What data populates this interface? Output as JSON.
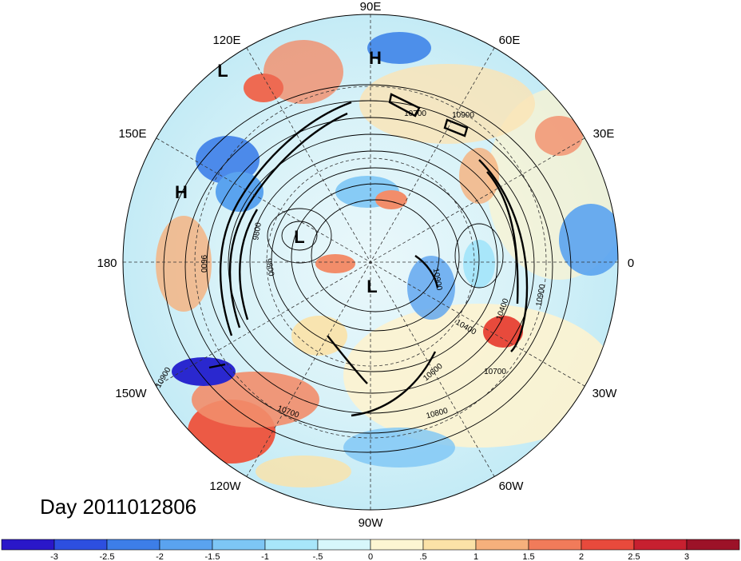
{
  "title": "Day 2011012806",
  "longitude_labels": [
    "90E",
    "60E",
    "30E",
    "0",
    "30W",
    "60W",
    "90W",
    "120W",
    "150W",
    "180",
    "150E",
    "120E"
  ],
  "pressure_centers": [
    {
      "name": "high-west-pacific",
      "label": "H"
    },
    {
      "name": "high-siberia",
      "label": "H"
    },
    {
      "name": "low-east-asia",
      "label": "L"
    },
    {
      "name": "low-canada",
      "label": "L"
    },
    {
      "name": "low-arctic",
      "label": "L"
    }
  ],
  "contour_labels": [
    "10900",
    "10700",
    "10900",
    "10400",
    "10700",
    "10800",
    "10700",
    "10400",
    "9800",
    "9800",
    "9600",
    "10900",
    "10900",
    "10600"
  ],
  "colorbar": {
    "ticks": [
      "-3",
      "-2.5",
      "-2",
      "-1.5",
      "-1",
      "-.5",
      "0",
      ".5",
      "1",
      "1.5",
      "2",
      "2.5",
      "3"
    ],
    "colors": [
      "#2a17c9",
      "#2d4fe0",
      "#3d7ee8",
      "#5aa3ef",
      "#7dc6f5",
      "#a8e6fa",
      "#d7f7fb",
      "#fdf6d2",
      "#fbe2a7",
      "#f6b07c",
      "#f17b5a",
      "#e84a3c",
      "#c72030",
      "#9c1228"
    ]
  }
}
